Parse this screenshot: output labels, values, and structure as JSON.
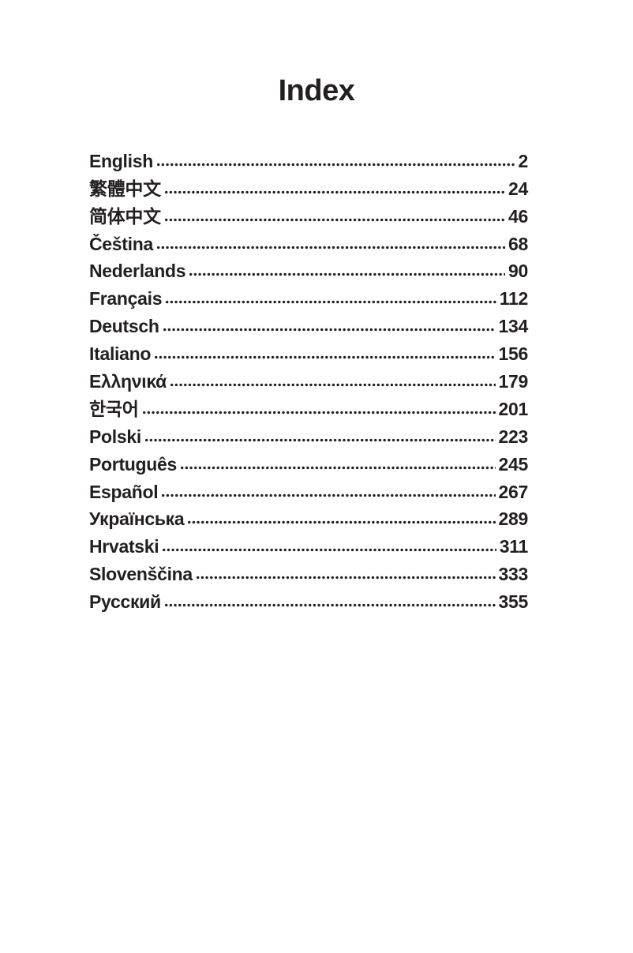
{
  "page": {
    "title": "Index"
  },
  "ink_color": "#231f20",
  "index": {
    "entries": [
      {
        "label": "English",
        "page": "2"
      },
      {
        "label": "繁體中文",
        "page": "24"
      },
      {
        "label": "简体中文",
        "page": "46"
      },
      {
        "label": "Čeština",
        "page": "68"
      },
      {
        "label": "Nederlands",
        "page": "90"
      },
      {
        "label": "Français",
        "page": "112"
      },
      {
        "label": "Deutsch",
        "page": "134"
      },
      {
        "label": "Italiano",
        "page": "156"
      },
      {
        "label": "Ελληνικά",
        "page": "179"
      },
      {
        "label": "한국어",
        "page": "201"
      },
      {
        "label": "Polski",
        "page": "223"
      },
      {
        "label": "Português",
        "page": "245"
      },
      {
        "label": "Español",
        "page": "267"
      },
      {
        "label": "Українська",
        "page": "289"
      },
      {
        "label": "Hrvatski",
        "page": "311"
      },
      {
        "label": "Slovenščina",
        "page": "333"
      },
      {
        "label": "Русский",
        "page": "355"
      }
    ]
  }
}
